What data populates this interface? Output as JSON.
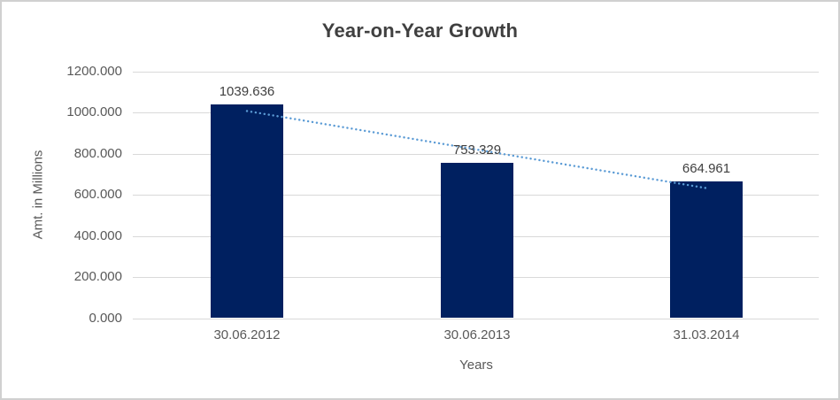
{
  "chart_data": {
    "type": "bar",
    "title": "Year-on-Year Growth",
    "xlabel": "Years",
    "ylabel": "Amt. in Millions",
    "categories": [
      "30.06.2012",
      "30.06.2013",
      "31.03.2014"
    ],
    "values": [
      1039.636,
      753.329,
      664.961
    ],
    "data_labels": [
      "1039.636",
      "753.329",
      "664.961"
    ],
    "ylim": [
      0,
      1200
    ],
    "ytick_values": [
      0,
      200,
      400,
      600,
      800,
      1000,
      1200
    ],
    "ytick_labels": [
      "0.000",
      "200.000",
      "400.000",
      "600.000",
      "800.000",
      "1000.000",
      "1200.000"
    ],
    "grid": true,
    "legend": "none",
    "trendline": {
      "type": "linear",
      "style": "dotted",
      "endpoint_values": [
        1006.6,
        632.0
      ]
    },
    "colors": {
      "bar": "#002060",
      "trendline": "#5b9bd5",
      "gridline": "#d9d9d9",
      "title_text": "#404040",
      "axis_text": "#595959",
      "data_label_text": "#404040",
      "border": "#d0d0d0",
      "background": "#ffffff"
    }
  }
}
